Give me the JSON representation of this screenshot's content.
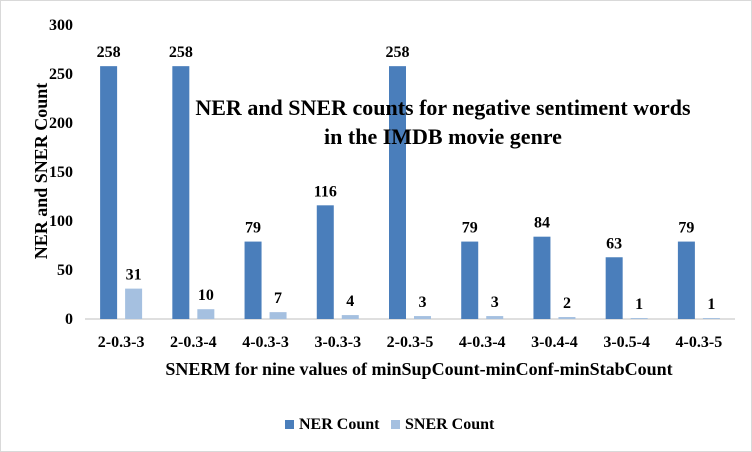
{
  "chart_data": {
    "type": "bar",
    "title_line1": "NER and SNER counts for negative sentiment words",
    "title_line2": "in the IMDB movie genre",
    "xlabel": "SNERM for nine values of minSupCount-minConf-minStabCount",
    "ylabel": "NER and SNER Count",
    "ylim": [
      0,
      300
    ],
    "yticks": [
      0,
      50,
      100,
      150,
      200,
      250,
      300
    ],
    "categories": [
      "2-0.3-3",
      "2-0.3-4",
      "4-0.3-3",
      "3-0.3-3",
      "2-0.3-5",
      "4-0.3-4",
      "3-0.4-4",
      "3-0.5-4",
      "4-0.3-5"
    ],
    "series": [
      {
        "name": "NER Count",
        "color": "#4a7ebb",
        "values": [
          258,
          258,
          79,
          116,
          258,
          79,
          84,
          63,
          79
        ]
      },
      {
        "name": "SNER Count",
        "color": "#a5c0e0",
        "values": [
          31,
          10,
          7,
          4,
          3,
          3,
          2,
          1,
          1
        ]
      }
    ],
    "grid": false,
    "legend_position": "bottom"
  }
}
